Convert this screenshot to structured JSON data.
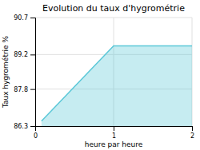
{
  "chart_data": {
    "type": "area",
    "title": "Evolution du taux d'hygrométrie",
    "xlabel": "heure par heure",
    "ylabel": "Taux hygrométrie %",
    "x": [
      0.08,
      1.0,
      2.0
    ],
    "values": [
      86.5,
      89.55,
      89.55
    ],
    "xlim": [
      0,
      2
    ],
    "ylim": [
      86.3,
      90.7
    ],
    "xticks": [
      0,
      1,
      2
    ],
    "yticks": [
      86.3,
      87.8,
      89.2,
      90.7
    ],
    "color": "#5bc8d8",
    "grid": true
  }
}
